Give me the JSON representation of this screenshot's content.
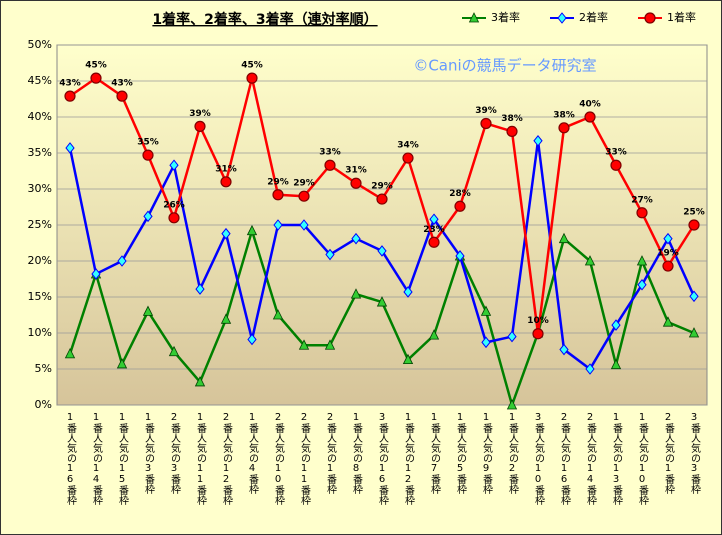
{
  "chart_data": {
    "type": "line",
    "title": "1着率、2着率、3着率（連対率順）",
    "annotation": "©Caniの競馬データ研究室",
    "categories": [
      "1番人気の16番枠",
      "1番人気の14番枠",
      "1番人気の15番枠",
      "1番人気の3番枠",
      "2番人気の3番枠",
      "1番人気の11番枠",
      "2番人気の12番枠",
      "1番人気の4番枠",
      "2番人気の10番枠",
      "2番人気の11番枠",
      "2番人気の1番枠",
      "1番人気の8番枠",
      "3番人気の16番枠",
      "1番人気の12番枠",
      "1番人気の7番枠",
      "1番人気の5番枠",
      "1番人気の9番枠",
      "1番人気の2番枠",
      "3番人気の10番枠",
      "2番人気の16番枠",
      "2番人気の14番枠",
      "1番人気の13番枠",
      "1番人気の10番枠",
      "2番人気の1番枠",
      "3番人気の3番枠"
    ],
    "series": [
      {
        "name": "3着率",
        "color": "#008000",
        "marker": "triangle",
        "values": [
          7.1,
          18.2,
          5.7,
          13,
          7.4,
          3.2,
          11.9,
          24.2,
          12.5,
          8.3,
          8.3,
          15.4,
          14.3,
          6.3,
          9.7,
          20.7,
          13,
          0,
          10,
          23.1,
          20,
          5.6,
          20,
          11.5,
          10
        ]
      },
      {
        "name": "2着率",
        "color": "#0000ff",
        "marker": "diamond",
        "values": [
          35.7,
          18.2,
          20,
          26.2,
          33.3,
          16.1,
          23.8,
          9.1,
          25,
          25,
          20.9,
          23.1,
          21.4,
          15.7,
          25.8,
          20.7,
          8.7,
          9.5,
          36.7,
          7.7,
          5,
          11.1,
          16.7,
          23.1,
          15.1
        ]
      },
      {
        "name": "1着率",
        "color": "#ff0000",
        "marker": "circle",
        "values": [
          42.9,
          45.4,
          42.9,
          34.7,
          26,
          38.7,
          31,
          45.4,
          29.2,
          29,
          33.3,
          30.8,
          28.6,
          34.3,
          22.6,
          27.6,
          39.1,
          38,
          9.9,
          38.5,
          40,
          33.3,
          26.7,
          19.3,
          25
        ],
        "value_labels": [
          "43%",
          "45%",
          "43%",
          "35%",
          "26%",
          "39%",
          "31%",
          "45%",
          "29%",
          "29%",
          "33%",
          "31%",
          "29%",
          "34%",
          "23%",
          "28%",
          "39%",
          "38%",
          "10%",
          "38%",
          "40%",
          "33%",
          "27%",
          "19%",
          "25%"
        ]
      }
    ],
    "ylim": [
      0,
      50
    ],
    "yticks": [
      {
        "value": 0,
        "label": "0%"
      },
      {
        "value": 5,
        "label": "5%"
      },
      {
        "value": 10,
        "label": "10%"
      },
      {
        "value": 15,
        "label": "15%"
      },
      {
        "value": 20,
        "label": "20%"
      },
      {
        "value": 25,
        "label": "25%"
      },
      {
        "value": 30,
        "label": "30%"
      },
      {
        "value": 35,
        "label": "35%"
      },
      {
        "value": 40,
        "label": "40%"
      },
      {
        "value": 45,
        "label": "45%"
      },
      {
        "value": 50,
        "label": "50%"
      }
    ],
    "grid": true,
    "legend": "top-right"
  }
}
